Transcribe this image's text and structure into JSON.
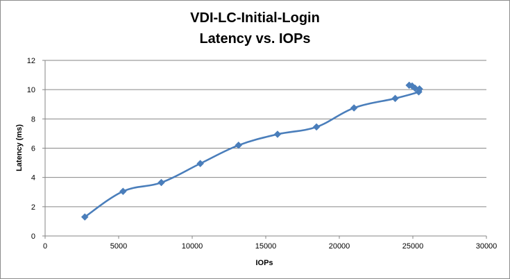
{
  "chart_data": {
    "type": "line",
    "title": "VDI-LC-Initial-Login",
    "subtitle": "Latency vs. IOPs",
    "xlabel": "IOPs",
    "ylabel": "Latency (ms)",
    "xlim": [
      0,
      30000
    ],
    "ylim": [
      0,
      12
    ],
    "xticks": [
      0,
      5000,
      10000,
      15000,
      20000,
      25000,
      30000
    ],
    "yticks": [
      0,
      2,
      4,
      6,
      8,
      10,
      12
    ],
    "grid": "horizontal",
    "legend": "none",
    "marker": "diamond",
    "smooth": true,
    "series": [
      {
        "color": "#4a7ebb",
        "x": [
          2700,
          5300,
          7900,
          10550,
          13150,
          15800,
          18450,
          21000,
          23800,
          25400,
          25450,
          25150,
          24950,
          24750
        ],
        "y": [
          1.3,
          3.05,
          3.65,
          4.95,
          6.2,
          6.95,
          7.45,
          8.75,
          9.4,
          9.85,
          10.05,
          10.1,
          10.25,
          10.3
        ]
      }
    ]
  }
}
